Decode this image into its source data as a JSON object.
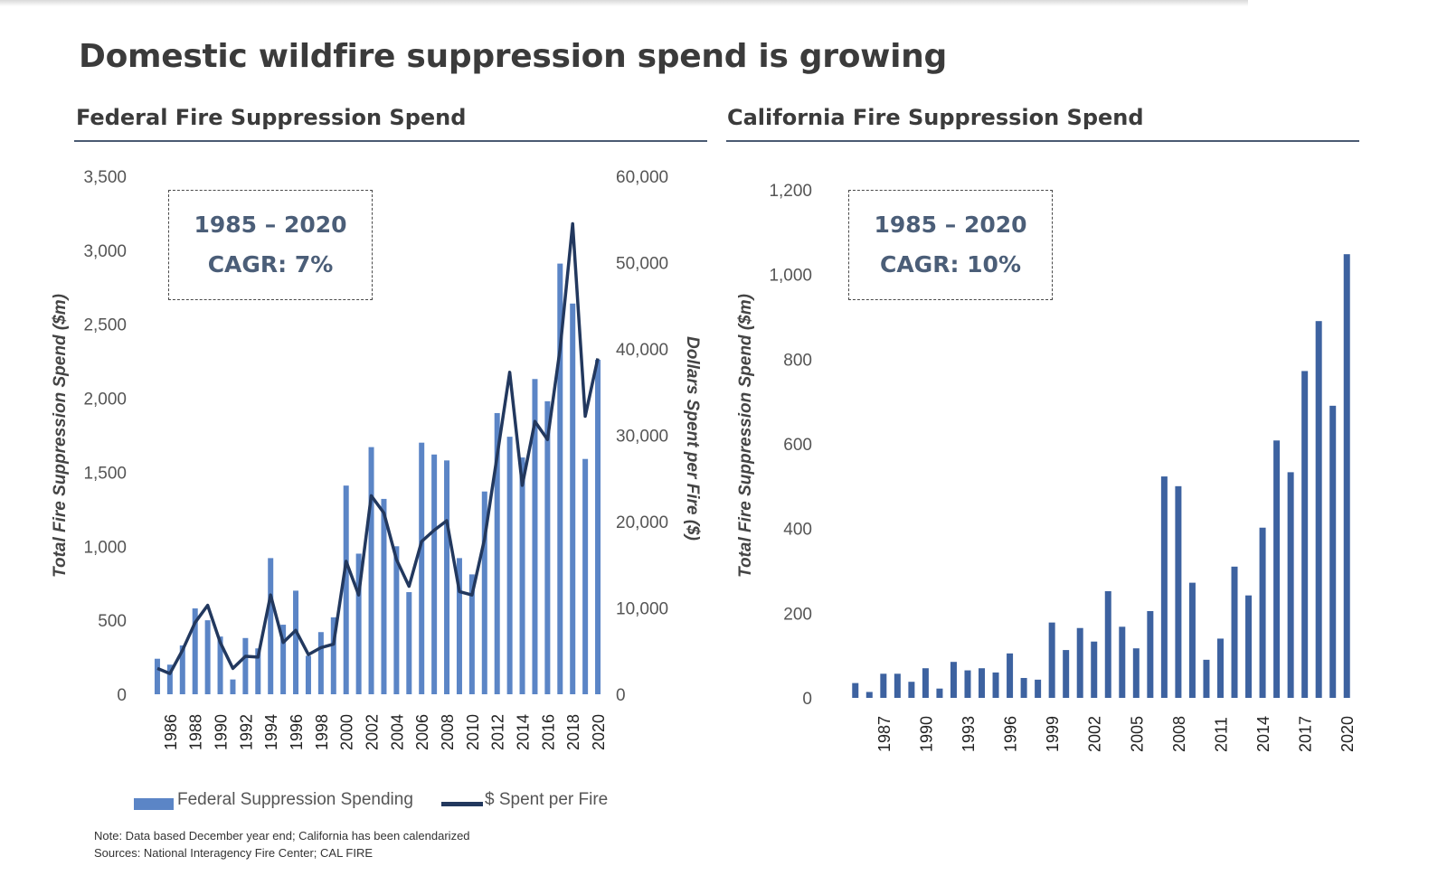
{
  "title": "Domestic wildfire suppression spend is growing",
  "footnote": {
    "note": "Note: Data based December year end; California has been calendarized",
    "sources": "Sources: National Interagency Fire Center; CAL FIRE"
  },
  "colors": {
    "federal_bar": "#5b85c6",
    "federal_line": "#22385e",
    "california_bar": "#3d62a0",
    "text_dark": "#3b3b3b",
    "cagr_text": "#4b5e78"
  },
  "chart_data": [
    {
      "id": "federal",
      "type": "bar",
      "title": "Federal Fire Suppression Spend",
      "ylabel": "Total Fire Suppression Spend ($m)",
      "y2label": "Dollars Spent per Fire ($)",
      "ylim": [
        0,
        3500
      ],
      "y2lim": [
        0,
        60000
      ],
      "yticks": [
        "0",
        "500",
        "1,000",
        "1,500",
        "2,000",
        "2,500",
        "3,000",
        "3,500"
      ],
      "y2ticks": [
        "0",
        "10,000",
        "20,000",
        "30,000",
        "40,000",
        "50,000",
        "60,000"
      ],
      "xtick_labels": [
        "1986",
        "1988",
        "1990",
        "1992",
        "1994",
        "1996",
        "1998",
        "2000",
        "2002",
        "2004",
        "2006",
        "2008",
        "2010",
        "2012",
        "2014",
        "2016",
        "2018",
        "2020"
      ],
      "categories": [
        "1985",
        "1986",
        "1987",
        "1988",
        "1989",
        "1990",
        "1991",
        "1992",
        "1993",
        "1994",
        "1995",
        "1996",
        "1997",
        "1998",
        "1999",
        "2000",
        "2001",
        "2002",
        "2003",
        "2004",
        "2005",
        "2006",
        "2007",
        "2008",
        "2009",
        "2010",
        "2011",
        "2012",
        "2013",
        "2014",
        "2015",
        "2016",
        "2017",
        "2018",
        "2019",
        "2020"
      ],
      "annotation": [
        "1985 – 2020",
        "CAGR: 7%"
      ],
      "grid": false,
      "legend": "bottom",
      "series": [
        {
          "name": "Federal Suppression Spending",
          "type": "bar",
          "axis": "left",
          "values": [
            240,
            200,
            330,
            580,
            500,
            390,
            100,
            380,
            310,
            920,
            470,
            700,
            260,
            420,
            520,
            1410,
            950,
            1670,
            1320,
            1000,
            690,
            1700,
            1620,
            1580,
            920,
            810,
            1370,
            1900,
            1740,
            1600,
            2130,
            1980,
            2910,
            2640,
            1590,
            2260
          ]
        },
        {
          "name": "$ Spent per Fire",
          "type": "line",
          "axis": "right",
          "values": [
            3000,
            2400,
            5100,
            8300,
            10300,
            6000,
            3000,
            4400,
            4300,
            11500,
            6000,
            7400,
            4600,
            5400,
            5800,
            15400,
            11500,
            23000,
            21000,
            15600,
            12500,
            17700,
            19000,
            20100,
            11900,
            11500,
            18000,
            27600,
            37300,
            24200,
            31600,
            29500,
            40000,
            54500,
            32200,
            38900
          ]
        }
      ]
    },
    {
      "id": "california",
      "type": "bar",
      "title": "California Fire Suppression Spend",
      "ylabel": "Total Fire Suppression Spend ($m)",
      "ylim": [
        0,
        1200
      ],
      "yticks": [
        "0",
        "200",
        "400",
        "600",
        "800",
        "1,000",
        "1,200"
      ],
      "xtick_labels": [
        "1987",
        "1990",
        "1993",
        "1996",
        "1999",
        "2002",
        "2005",
        "2008",
        "2011",
        "2014",
        "2017",
        "2020"
      ],
      "categories": [
        "1985",
        "1986",
        "1987",
        "1988",
        "1989",
        "1990",
        "1991",
        "1992",
        "1993",
        "1994",
        "1995",
        "1996",
        "1997",
        "1998",
        "1999",
        "2000",
        "2001",
        "2002",
        "2003",
        "2004",
        "2005",
        "2006",
        "2007",
        "2008",
        "2009",
        "2010",
        "2011",
        "2012",
        "2013",
        "2014",
        "2015",
        "2016",
        "2017",
        "2018",
        "2019",
        "2020"
      ],
      "annotation": [
        "1985 – 2020",
        "CAGR: 10%"
      ],
      "grid": false,
      "series": [
        {
          "type": "bar",
          "values": [
            35,
            14,
            57,
            57,
            38,
            70,
            22,
            85,
            65,
            70,
            60,
            105,
            47,
            43,
            178,
            113,
            165,
            133,
            252,
            168,
            117,
            205,
            523,
            500,
            272,
            90,
            140,
            310,
            242,
            402,
            608,
            533,
            772,
            890,
            690,
            1048
          ]
        }
      ]
    }
  ]
}
